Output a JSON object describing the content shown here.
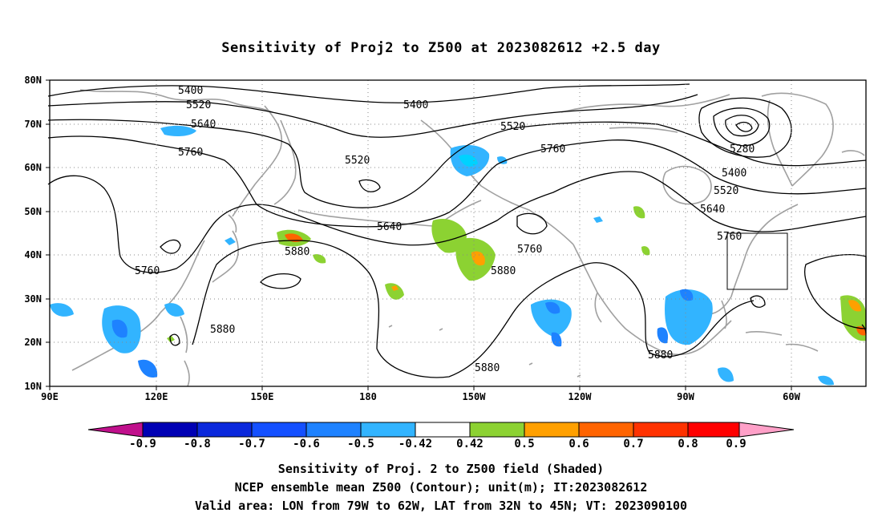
{
  "title": "Sensitivity of Proj2 to Z500 at 2023082612 +2.5 day",
  "map": {
    "lon_ticks": [
      "90E",
      "120E",
      "150E",
      "180",
      "150W",
      "120W",
      "90W",
      "60W"
    ],
    "lat_ticks": [
      "80N",
      "70N",
      "60N",
      "50N",
      "40N",
      "30N",
      "20N",
      "10N"
    ],
    "contour_labels": [
      "5400",
      "5520",
      "5640",
      "5760",
      "5400",
      "5520",
      "5520",
      "5760",
      "5280",
      "5400",
      "5520",
      "5640",
      "5760",
      "5640",
      "5760",
      "5880",
      "5880",
      "5880",
      "5880",
      "5880",
      "5760"
    ],
    "verification_box": {
      "lon_from": "79W",
      "lon_to": "62W",
      "lat_from": "32N",
      "lat_to": "45N"
    },
    "colors": {
      "contour": "#000000",
      "coast": "#a0a0a0",
      "grid": "#888888"
    }
  },
  "colorbar": {
    "labels": [
      "-0.9",
      "-0.8",
      "-0.7",
      "-0.6",
      "-0.5",
      "-0.42",
      "0.42",
      "0.5",
      "0.6",
      "0.7",
      "0.8",
      "0.9"
    ],
    "colors": [
      "#c0108c",
      "#0000b4",
      "#0a28dc",
      "#1450ff",
      "#1e82ff",
      "#32b4ff",
      "#00d2ff",
      "#ffffff",
      "#8cd232",
      "#ffa000",
      "#ff6400",
      "#ff3200",
      "#ff0000",
      "#ffa0c8"
    ]
  },
  "caption": {
    "line1": "Sensitivity of Proj. 2 to Z500 field (Shaded)",
    "line2": "NCEP ensemble mean Z500 (Contour); unit(m); IT:2023082612",
    "line3": "Valid area: LON from 79W to 62W, LAT from 32N to 45N; VT: 2023090100"
  }
}
